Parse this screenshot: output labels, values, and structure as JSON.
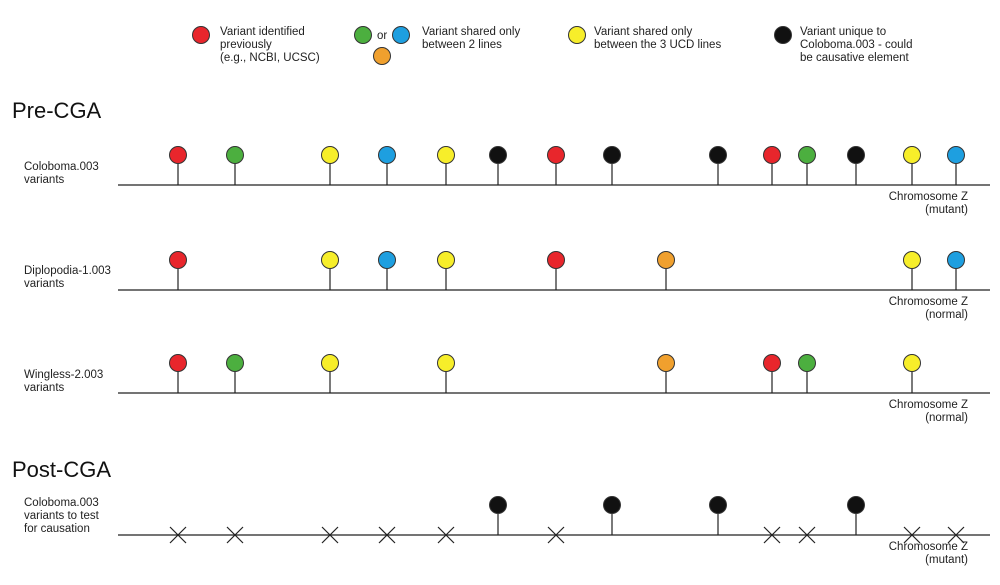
{
  "colors": {
    "red": "#e8262c",
    "green": "#4caf3f",
    "blue": "#1e9fe0",
    "orange": "#f0a02e",
    "yellow": "#f7ee2a",
    "black": "#111111"
  },
  "legend": [
    {
      "marks": [
        "red"
      ],
      "lines": [
        "Variant identified",
        "previously",
        "(e.g., NCBI, UCSC)"
      ]
    },
    {
      "marks": [
        "green",
        "orange",
        "blue"
      ],
      "connector": "or",
      "lines": [
        "Variant shared only",
        "between 2 lines"
      ]
    },
    {
      "marks": [
        "yellow"
      ],
      "lines": [
        "Variant shared only",
        "between the 3 UCD lines"
      ]
    },
    {
      "marks": [
        "black"
      ],
      "lines": [
        "Variant unique to",
        "Coloboma.003 - could",
        "be causative element"
      ]
    }
  ],
  "sections": [
    {
      "title": "Pre-CGA"
    },
    {
      "title": "Post-CGA"
    }
  ],
  "tracks": [
    {
      "label": [
        "Coloboma.003",
        "variants"
      ],
      "chromosome": [
        "Chromosome Z",
        "(mutant)"
      ],
      "variants": [
        {
          "pos": 1,
          "color": "red"
        },
        {
          "pos": 2,
          "color": "green"
        },
        {
          "pos": 3,
          "color": "yellow"
        },
        {
          "pos": 4,
          "color": "blue"
        },
        {
          "pos": 5,
          "color": "yellow"
        },
        {
          "pos": 6,
          "color": "black"
        },
        {
          "pos": 7,
          "color": "red"
        },
        {
          "pos": 8,
          "color": "black"
        },
        {
          "pos": 9,
          "color": "black"
        },
        {
          "pos": 10,
          "color": "red"
        },
        {
          "pos": 11,
          "color": "green"
        },
        {
          "pos": 12,
          "color": "black"
        },
        {
          "pos": 13,
          "color": "yellow"
        },
        {
          "pos": 14,
          "color": "blue"
        }
      ]
    },
    {
      "label": [
        "Diplopodia-1.003",
        "variants"
      ],
      "chromosome": [
        "Chromosome Z",
        "(normal)"
      ],
      "variants": [
        {
          "pos": 1,
          "color": "red"
        },
        {
          "pos": 3,
          "color": "yellow"
        },
        {
          "pos": 4,
          "color": "blue"
        },
        {
          "pos": 5,
          "color": "yellow"
        },
        {
          "pos": 7,
          "color": "red"
        },
        {
          "pos": 8.5,
          "color": "orange"
        },
        {
          "pos": 13,
          "color": "yellow"
        },
        {
          "pos": 14,
          "color": "blue"
        }
      ]
    },
    {
      "label": [
        "Wingless-2.003",
        "variants"
      ],
      "chromosome": [
        "Chromosome Z",
        "(normal)"
      ],
      "variants": [
        {
          "pos": 1,
          "color": "red"
        },
        {
          "pos": 2,
          "color": "green"
        },
        {
          "pos": 3,
          "color": "yellow"
        },
        {
          "pos": 5,
          "color": "yellow"
        },
        {
          "pos": 8.5,
          "color": "orange"
        },
        {
          "pos": 10,
          "color": "red"
        },
        {
          "pos": 11,
          "color": "green"
        },
        {
          "pos": 13,
          "color": "yellow"
        }
      ]
    },
    {
      "label": [
        "Coloboma.003",
        "variants to test",
        "for causation"
      ],
      "chromosome": [
        "Chromosome Z",
        "(mutant)"
      ],
      "variants": [
        {
          "pos": 1,
          "color": "x"
        },
        {
          "pos": 2,
          "color": "x"
        },
        {
          "pos": 3,
          "color": "x"
        },
        {
          "pos": 4,
          "color": "x"
        },
        {
          "pos": 5,
          "color": "x"
        },
        {
          "pos": 6,
          "color": "black"
        },
        {
          "pos": 7,
          "color": "x"
        },
        {
          "pos": 8,
          "color": "black"
        },
        {
          "pos": 9,
          "color": "black"
        },
        {
          "pos": 10,
          "color": "x"
        },
        {
          "pos": 11,
          "color": "x"
        },
        {
          "pos": 12,
          "color": "black"
        },
        {
          "pos": 13,
          "color": "x"
        },
        {
          "pos": 14,
          "color": "x"
        }
      ]
    }
  ]
}
